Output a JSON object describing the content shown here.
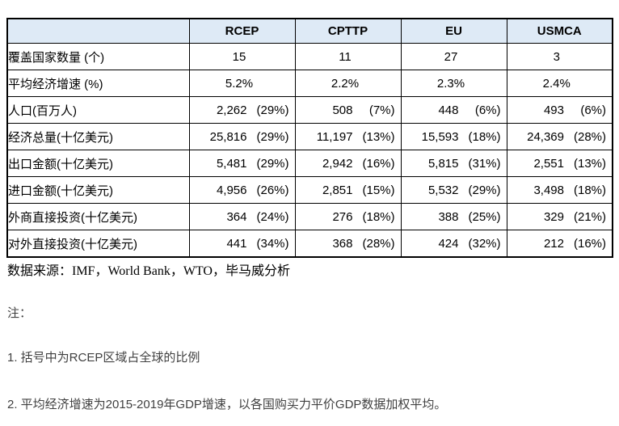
{
  "colors": {
    "header_bg": "#DEEAF6",
    "border": "#000000",
    "note_text": "#404040"
  },
  "table": {
    "headers": [
      "",
      "RCEP",
      "CPTTP",
      "EU",
      "USMCA"
    ],
    "rows": [
      {
        "label": "覆盖国家数量 (个)",
        "cells": [
          {
            "value": "15",
            "pct": ""
          },
          {
            "value": "11",
            "pct": ""
          },
          {
            "value": "27",
            "pct": ""
          },
          {
            "value": "3",
            "pct": ""
          }
        ]
      },
      {
        "label": "平均经济增速 (%)",
        "cells": [
          {
            "value": "5.2%",
            "pct": ""
          },
          {
            "value": "2.2%",
            "pct": ""
          },
          {
            "value": "2.3%",
            "pct": ""
          },
          {
            "value": "2.4%",
            "pct": ""
          }
        ]
      },
      {
        "label": "人口(百万人)",
        "cells": [
          {
            "value": "2,262",
            "pct": "(29%)"
          },
          {
            "value": "508",
            "pct": "(7%)"
          },
          {
            "value": "448",
            "pct": "(6%)"
          },
          {
            "value": "493",
            "pct": "(6%)"
          }
        ]
      },
      {
        "label": "经济总量(十亿美元)",
        "cells": [
          {
            "value": "25,816",
            "pct": "(29%)"
          },
          {
            "value": "11,197",
            "pct": "(13%)"
          },
          {
            "value": "15,593",
            "pct": "(18%)"
          },
          {
            "value": "24,369",
            "pct": "(28%)"
          }
        ]
      },
      {
        "label": "出口金额(十亿美元)",
        "cells": [
          {
            "value": "5,481",
            "pct": "(29%)"
          },
          {
            "value": "2,942",
            "pct": "(16%)"
          },
          {
            "value": "5,815",
            "pct": "(31%)"
          },
          {
            "value": "2,551",
            "pct": "(13%)"
          }
        ]
      },
      {
        "label": "进口金额(十亿美元)",
        "cells": [
          {
            "value": "4,956",
            "pct": "(26%)"
          },
          {
            "value": "2,851",
            "pct": "(15%)"
          },
          {
            "value": "5,532",
            "pct": "(29%)"
          },
          {
            "value": "3,498",
            "pct": "(18%)"
          }
        ]
      },
      {
        "label": "外商直接投资(十亿美元)",
        "cells": [
          {
            "value": "364",
            "pct": "(24%)"
          },
          {
            "value": "276",
            "pct": "(18%)"
          },
          {
            "value": "388",
            "pct": "(25%)"
          },
          {
            "value": "329",
            "pct": "(21%)"
          }
        ]
      },
      {
        "label": "对外直接投资(十亿美元)",
        "cells": [
          {
            "value": "441",
            "pct": "(34%)"
          },
          {
            "value": "368",
            "pct": "(28%)"
          },
          {
            "value": "424",
            "pct": "(32%)"
          },
          {
            "value": "212",
            "pct": "(16%)"
          }
        ]
      }
    ]
  },
  "source_line": "数据来源：IMF，World Bank，WTO，毕马威分析",
  "notes": {
    "heading": "注：",
    "items": [
      "1. 括号中为RCEP区域占全球的比例",
      "2. 平均经济增速为2015-2019年GDP增速，以各国购买力平价GDP数据加权平均。"
    ]
  }
}
